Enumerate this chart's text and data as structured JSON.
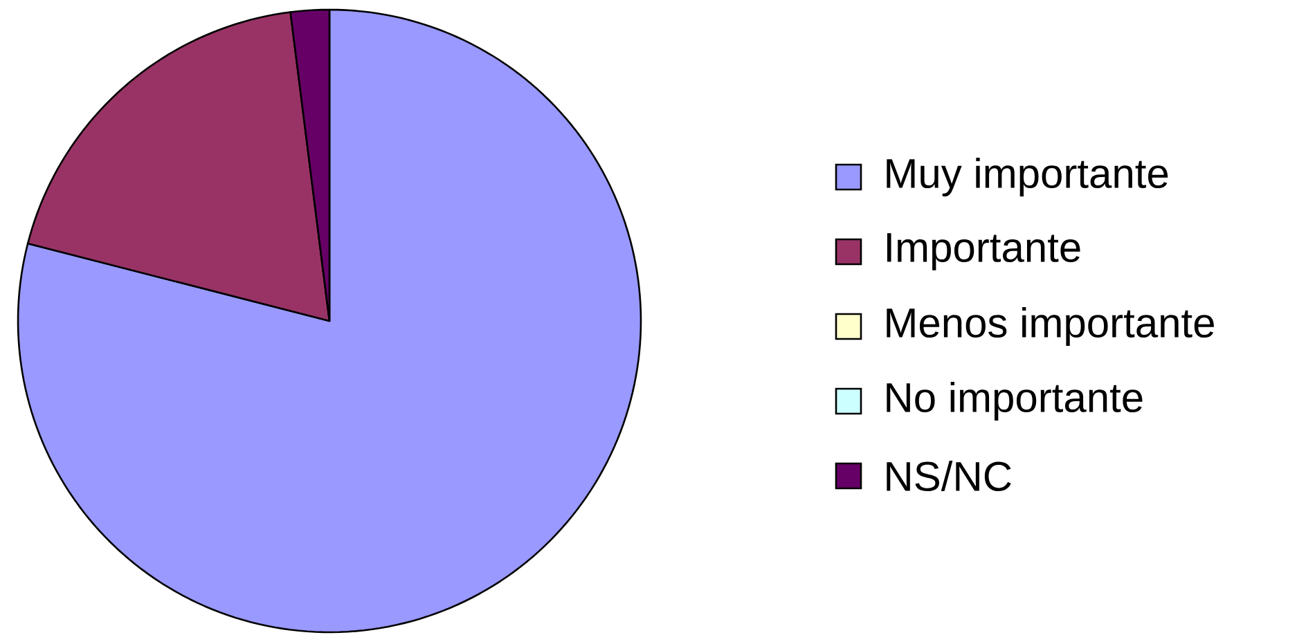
{
  "chart_data": {
    "type": "pie",
    "categories": [
      "Muy importante",
      "Importante",
      "Menos importante",
      "No importante",
      "NS/NC"
    ],
    "values": [
      79,
      19,
      0,
      0,
      2
    ],
    "colors": [
      "#9999ff",
      "#993366",
      "#ffffcc",
      "#ccffff",
      "#660066"
    ],
    "legend": "right"
  }
}
